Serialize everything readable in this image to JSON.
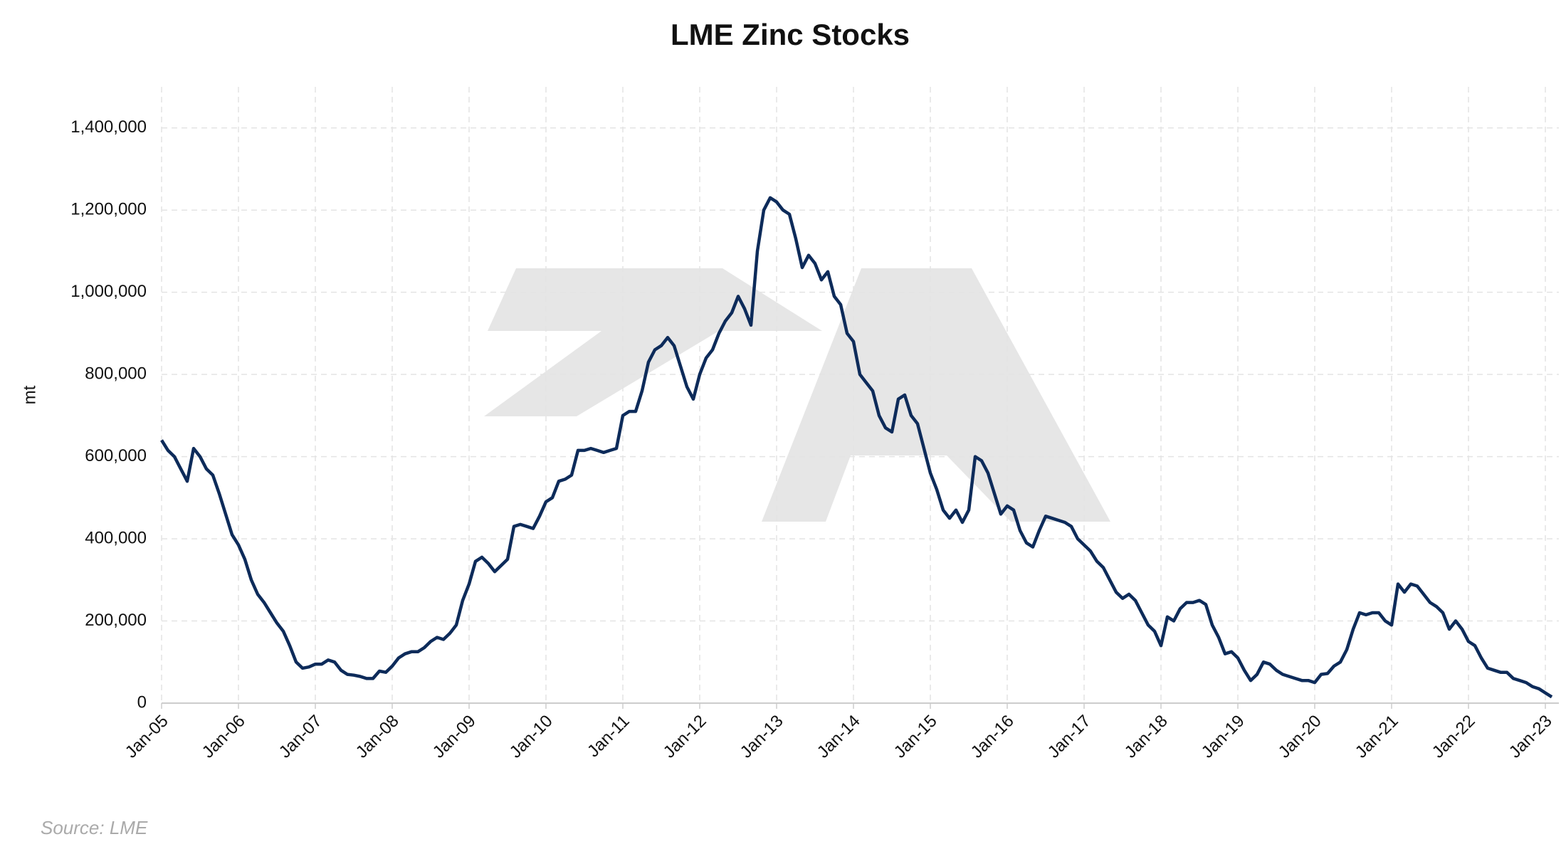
{
  "chart_data": {
    "type": "line",
    "title": "LME Zinc Stocks",
    "y_label": "mt",
    "source": "Source: LME",
    "x": [
      "Jan-05",
      "Feb-05",
      "Mar-05",
      "Apr-05",
      "May-05",
      "Jun-05",
      "Jul-05",
      "Aug-05",
      "Sep-05",
      "Oct-05",
      "Nov-05",
      "Dec-05",
      "Jan-06",
      "Feb-06",
      "Mar-06",
      "Apr-06",
      "May-06",
      "Jun-06",
      "Jul-06",
      "Aug-06",
      "Sep-06",
      "Oct-06",
      "Nov-06",
      "Dec-06",
      "Jan-07",
      "Feb-07",
      "Mar-07",
      "Apr-07",
      "May-07",
      "Jun-07",
      "Jul-07",
      "Aug-07",
      "Sep-07",
      "Oct-07",
      "Nov-07",
      "Dec-07",
      "Jan-08",
      "Feb-08",
      "Mar-08",
      "Apr-08",
      "May-08",
      "Jun-08",
      "Jul-08",
      "Aug-08",
      "Sep-08",
      "Oct-08",
      "Nov-08",
      "Dec-08",
      "Jan-09",
      "Feb-09",
      "Mar-09",
      "Apr-09",
      "May-09",
      "Jun-09",
      "Jul-09",
      "Aug-09",
      "Sep-09",
      "Oct-09",
      "Nov-09",
      "Dec-09",
      "Jan-10",
      "Feb-10",
      "Mar-10",
      "Apr-10",
      "May-10",
      "Jun-10",
      "Jul-10",
      "Aug-10",
      "Sep-10",
      "Oct-10",
      "Nov-10",
      "Dec-10",
      "Jan-11",
      "Feb-11",
      "Mar-11",
      "Apr-11",
      "May-11",
      "Jun-11",
      "Jul-11",
      "Aug-11",
      "Sep-11",
      "Oct-11",
      "Nov-11",
      "Dec-11",
      "Jan-12",
      "Feb-12",
      "Mar-12",
      "Apr-12",
      "May-12",
      "Jun-12",
      "Jul-12",
      "Aug-12",
      "Sep-12",
      "Oct-12",
      "Nov-12",
      "Dec-12",
      "Jan-13",
      "Feb-13",
      "Mar-13",
      "Apr-13",
      "May-13",
      "Jun-13",
      "Jul-13",
      "Aug-13",
      "Sep-13",
      "Oct-13",
      "Nov-13",
      "Dec-13",
      "Jan-14",
      "Feb-14",
      "Mar-14",
      "Apr-14",
      "May-14",
      "Jun-14",
      "Jul-14",
      "Aug-14",
      "Sep-14",
      "Oct-14",
      "Nov-14",
      "Dec-14",
      "Jan-15",
      "Feb-15",
      "Mar-15",
      "Apr-15",
      "May-15",
      "Jun-15",
      "Jul-15",
      "Aug-15",
      "Sep-15",
      "Oct-15",
      "Nov-15",
      "Dec-15",
      "Jan-16",
      "Feb-16",
      "Mar-16",
      "Apr-16",
      "May-16",
      "Jun-16",
      "Jul-16",
      "Aug-16",
      "Sep-16",
      "Oct-16",
      "Nov-16",
      "Dec-16",
      "Jan-17",
      "Feb-17",
      "Mar-17",
      "Apr-17",
      "May-17",
      "Jun-17",
      "Jul-17",
      "Aug-17",
      "Sep-17",
      "Oct-17",
      "Nov-17",
      "Dec-17",
      "Jan-18",
      "Feb-18",
      "Mar-18",
      "Apr-18",
      "May-18",
      "Jun-18",
      "Jul-18",
      "Aug-18",
      "Sep-18",
      "Oct-18",
      "Nov-18",
      "Dec-18",
      "Jan-19",
      "Feb-19",
      "Mar-19",
      "Apr-19",
      "May-19",
      "Jun-19",
      "Jul-19",
      "Aug-19",
      "Sep-19",
      "Oct-19",
      "Nov-19",
      "Dec-19",
      "Jan-20",
      "Feb-20",
      "Mar-20",
      "Apr-20",
      "May-20",
      "Jun-20",
      "Jul-20",
      "Aug-20",
      "Sep-20",
      "Oct-20",
      "Nov-20",
      "Dec-20",
      "Jan-21",
      "Feb-21",
      "Mar-21",
      "Apr-21",
      "May-21",
      "Jun-21",
      "Jul-21",
      "Aug-21",
      "Sep-21",
      "Oct-21",
      "Nov-21",
      "Dec-21",
      "Jan-22",
      "Feb-22",
      "Mar-22",
      "Apr-22",
      "May-22",
      "Jun-22",
      "Jul-22",
      "Aug-22",
      "Sep-22",
      "Oct-22",
      "Nov-22",
      "Dec-22",
      "Jan-23",
      "Feb-23"
    ],
    "series": [
      {
        "name": "LME Zinc Stocks",
        "color": "#0d2b5a",
        "values": [
          640000,
          615000,
          600000,
          570000,
          540000,
          620000,
          600000,
          570000,
          555000,
          510000,
          460000,
          410000,
          385000,
          350000,
          300000,
          265000,
          245000,
          220000,
          195000,
          175000,
          140000,
          100000,
          85000,
          88000,
          95000,
          95000,
          105000,
          100000,
          80000,
          70000,
          68000,
          65000,
          60000,
          60000,
          78000,
          75000,
          90000,
          110000,
          120000,
          125000,
          125000,
          135000,
          150000,
          160000,
          155000,
          170000,
          190000,
          250000,
          290000,
          345000,
          355000,
          340000,
          320000,
          335000,
          350000,
          430000,
          435000,
          430000,
          425000,
          455000,
          490000,
          500000,
          540000,
          545000,
          555000,
          615000,
          615000,
          620000,
          615000,
          610000,
          615000,
          620000,
          700000,
          710000,
          710000,
          760000,
          830000,
          860000,
          870000,
          890000,
          870000,
          820000,
          770000,
          740000,
          800000,
          840000,
          860000,
          900000,
          930000,
          950000,
          990000,
          960000,
          920000,
          1100000,
          1200000,
          1230000,
          1220000,
          1200000,
          1190000,
          1130000,
          1060000,
          1090000,
          1070000,
          1030000,
          1050000,
          990000,
          970000,
          900000,
          880000,
          800000,
          780000,
          760000,
          700000,
          670000,
          660000,
          740000,
          750000,
          700000,
          680000,
          620000,
          560000,
          520000,
          470000,
          450000,
          470000,
          440000,
          470000,
          600000,
          590000,
          560000,
          510000,
          460000,
          480000,
          470000,
          420000,
          390000,
          380000,
          420000,
          455000,
          450000,
          445000,
          440000,
          430000,
          400000,
          385000,
          370000,
          345000,
          330000,
          300000,
          270000,
          255000,
          265000,
          250000,
          220000,
          190000,
          175000,
          140000,
          210000,
          200000,
          230000,
          245000,
          245000,
          250000,
          240000,
          190000,
          160000,
          120000,
          125000,
          110000,
          80000,
          55000,
          70000,
          100000,
          95000,
          80000,
          70000,
          65000,
          60000,
          55000,
          55000,
          50000,
          70000,
          72000,
          90000,
          100000,
          130000,
          180000,
          220000,
          215000,
          220000,
          220000,
          200000,
          190000,
          290000,
          270000,
          290000,
          285000,
          265000,
          245000,
          235000,
          220000,
          180000,
          200000,
          180000,
          150000,
          140000,
          110000,
          85000,
          80000,
          75000,
          75000,
          60000,
          55000,
          50000,
          40000,
          35000,
          25000,
          15000
        ]
      }
    ],
    "xticks": [
      "Jan-05",
      "Jan-06",
      "Jan-07",
      "Jan-08",
      "Jan-09",
      "Jan-10",
      "Jan-11",
      "Jan-12",
      "Jan-13",
      "Jan-14",
      "Jan-15",
      "Jan-16",
      "Jan-17",
      "Jan-18",
      "Jan-19",
      "Jan-20",
      "Jan-21",
      "Jan-22",
      "Jan-23"
    ],
    "ylim": [
      0,
      1500000
    ],
    "yticks": [
      0,
      {
        "value": 200000,
        "label": "200,000"
      },
      {
        "value": 400000,
        "label": "400,000"
      },
      {
        "value": 600000,
        "label": "600,000"
      },
      {
        "value": 800000,
        "label": "800,000"
      },
      {
        "value": 1000000,
        "label": "1,000,000"
      },
      {
        "value": 1200000,
        "label": "1,200,000"
      },
      {
        "value": 1400000,
        "label": "1,400,000"
      }
    ],
    "grid": true
  }
}
